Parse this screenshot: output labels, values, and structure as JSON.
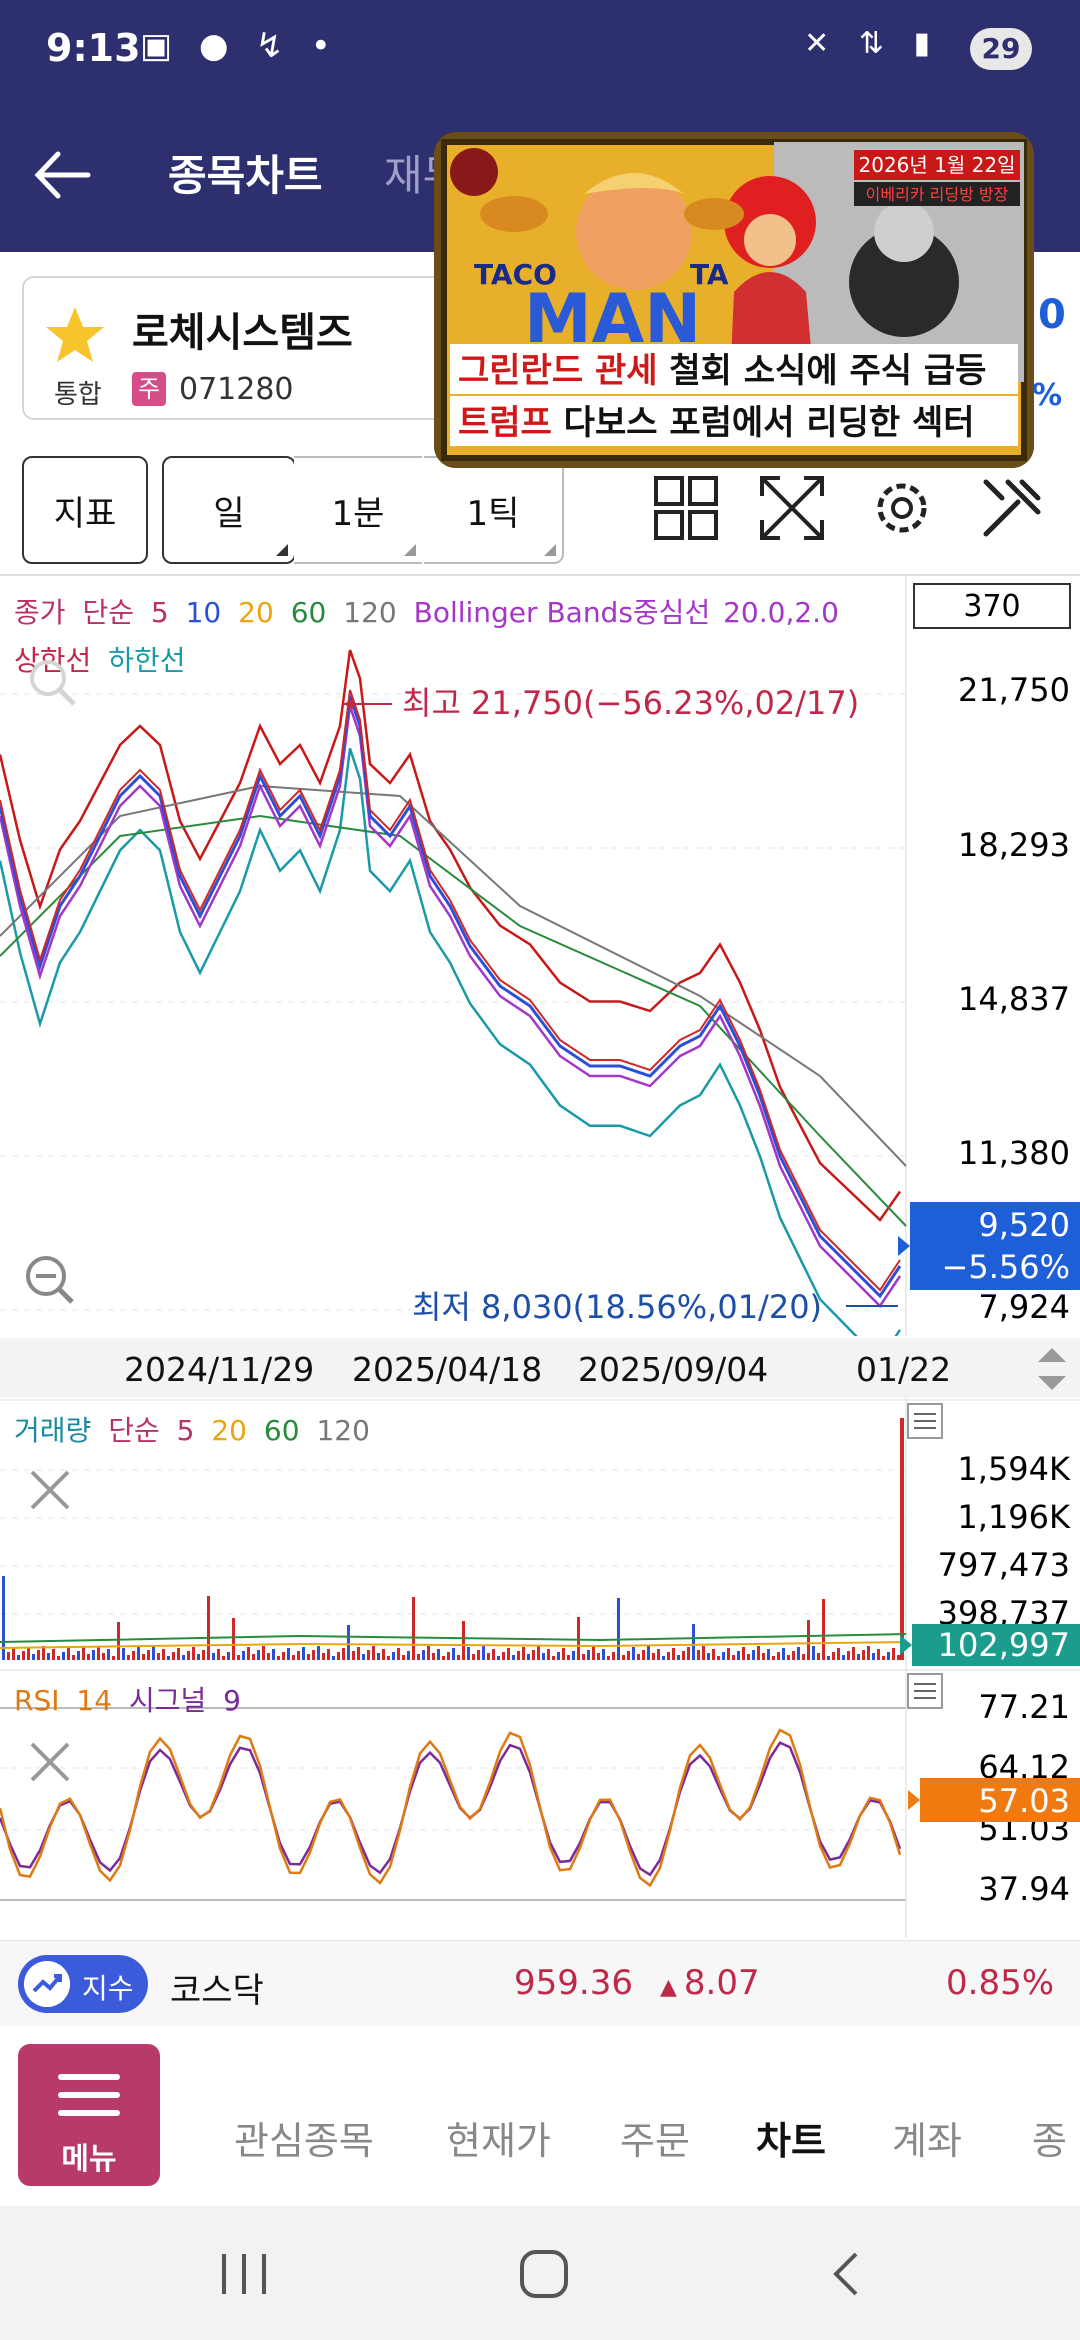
{
  "status_bar": {
    "time": "9:13",
    "battery": "29"
  },
  "header": {
    "title": "종목차트",
    "next_tab_partial": "재무"
  },
  "stock": {
    "name": "로체시스템즈",
    "market": "통합",
    "type_badge": "주",
    "code": "071280"
  },
  "toolbar": {
    "indicator_label": "지표",
    "period_label": "일",
    "minute_label": "1분",
    "tick_label": "1틱"
  },
  "main_chart": {
    "legend_line1": [
      "종가",
      "단순",
      "5",
      "10",
      "20",
      "60",
      "120",
      "Bollinger Bands중심선",
      "20.0,2.0"
    ],
    "legend_line2": [
      "상한선",
      "하한선"
    ],
    "count_box": "370",
    "y_ticks": [
      "21,750",
      "18,293",
      "14,837",
      "11,380",
      "7,924"
    ],
    "high_annotation": "최고 21,750(−56.23%,02/17)",
    "low_annotation": "최저 8,030(18.56%,01/20)",
    "current_price": "9,520",
    "current_change": "−5.56%",
    "x_ticks": [
      "2024/11/29",
      "2025/04/18",
      "2025/09/04",
      "01/22"
    ]
  },
  "volume_chart": {
    "legend": [
      "거래량",
      "단순",
      "5",
      "20",
      "60",
      "120"
    ],
    "y_ticks": [
      "1,594K",
      "1,196K",
      "797,473",
      "398,737"
    ],
    "current": "102,997"
  },
  "rsi_chart": {
    "legend": [
      "RSI",
      "14",
      "시그널",
      "9"
    ],
    "y_ticks": [
      "77.21",
      "64.12",
      "51.03",
      "37.94"
    ],
    "current": "57.03"
  },
  "ticker": {
    "pill_label": "지수",
    "index_name": "코스닥",
    "value": "959.36",
    "change": "8.07",
    "change_pct": "0.85%"
  },
  "bottom_nav": {
    "menu_label": "메뉴",
    "items": [
      "관심종목",
      "현재가",
      "주문",
      "차트",
      "계좌",
      "종"
    ]
  },
  "pip_video": {
    "date": "2026년 1월 22일",
    "channel_tag": "이베리카 리딩방 방장",
    "caption_line1_highlight": "그린란드 관세",
    "caption_line1_rest": " 철회 소식에 주식 급등",
    "caption_line2_highlight": "트럼프",
    "caption_line2_rest": " 다보스 포럼에서 리딩한 섹터",
    "sign_words": [
      "TACO",
      "TA",
      "MAN"
    ]
  },
  "colors": {
    "header_bg": "#2d2f6e",
    "price_up": "#c0284a",
    "price_down": "#1e5ed6",
    "menu_bg": "#b83a6a",
    "volume_badge": "#1b9c8c",
    "rsi_badge": "#f07a10"
  }
}
